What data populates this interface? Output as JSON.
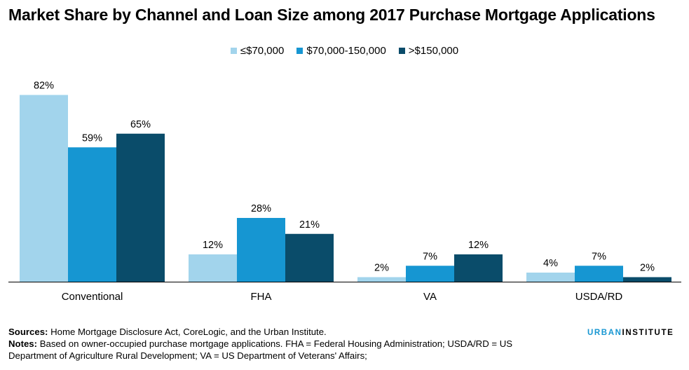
{
  "title": "Market Share by Channel and Loan Size among 2017 Purchase Mortgage Applications",
  "colors": {
    "s1": "#a2d4ec",
    "s2": "#1696d2",
    "s3": "#0a4c6a",
    "axis": "#000000"
  },
  "chart_data": {
    "type": "bar",
    "categories": [
      "Conventional",
      "FHA",
      "VA",
      "USDA/RD"
    ],
    "series": [
      {
        "name": "≤$70,000",
        "values": [
          82,
          12,
          2,
          4
        ],
        "labels": [
          "82%",
          "12%",
          "2%",
          "4%"
        ]
      },
      {
        "name": "$70,000-150,000",
        "values": [
          59,
          28,
          7,
          7
        ],
        "labels": [
          "59%",
          "28%",
          "7%",
          "7%"
        ]
      },
      {
        "name": ">$150,000",
        "values": [
          65,
          21,
          12,
          2
        ],
        "labels": [
          "65%",
          "21%",
          "12%",
          "2%"
        ]
      }
    ],
    "ylim": [
      0,
      100
    ],
    "grid": false,
    "legend": "top-center"
  },
  "footer": {
    "sources_label": "Sources:",
    "sources_text": " Home Mortgage Disclosure Act, CoreLogic, and the Urban Institute.",
    "notes_label": "Notes:",
    "notes_text": " Based on owner-occupied purchase mortgage applications. FHA = Federal Housing Administration; USDA/RD = US Department of Agriculture Rural Development; VA =  US Department of Veterans' Affairs;"
  },
  "brand": {
    "part1": "URBAN",
    "part2": "INSTITUTE"
  }
}
